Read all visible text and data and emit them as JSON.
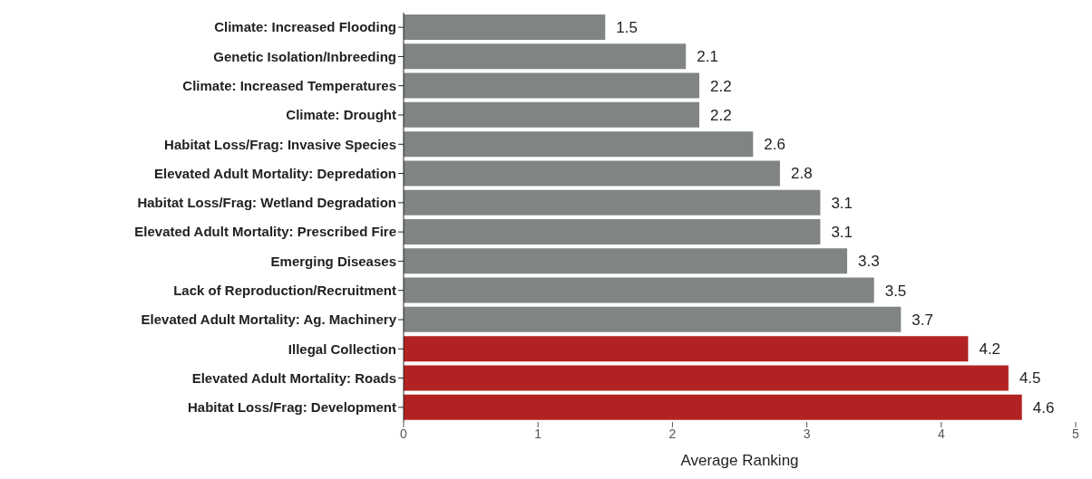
{
  "chart_data": {
    "type": "bar",
    "orientation": "horizontal",
    "xlabel": "Average Ranking",
    "categories": [
      "Climate: Increased Flooding",
      "Genetic Isolation/Inbreeding",
      "Climate: Increased Temperatures",
      "Climate: Drought",
      "Habitat Loss/Frag: Invasive Species",
      "Elevated Adult Mortality: Depredation",
      "Habitat Loss/Frag: Wetland Degradation",
      "Elevated Adult Mortality: Prescribed Fire",
      "Emerging Diseases",
      "Lack of Reproduction/Recruitment",
      "Elevated Adult Mortality: Ag. Machinery",
      "Illegal Collection",
      "Elevated Adult Mortality: Roads",
      "Habitat Loss/Frag: Development"
    ],
    "values": [
      1.5,
      2.1,
      2.2,
      2.2,
      2.6,
      2.8,
      3.1,
      3.1,
      3.3,
      3.5,
      3.7,
      4.2,
      4.5,
      4.6
    ],
    "colors": [
      "#808584",
      "#808584",
      "#808584",
      "#808584",
      "#808584",
      "#808584",
      "#808584",
      "#808584",
      "#808584",
      "#808584",
      "#808584",
      "#b22222",
      "#b22222",
      "#b22222"
    ],
    "xlim": [
      0,
      5
    ],
    "xticks": [
      0,
      1,
      2,
      3,
      4,
      5
    ],
    "data_labels": true,
    "grid": false,
    "legend": false
  }
}
